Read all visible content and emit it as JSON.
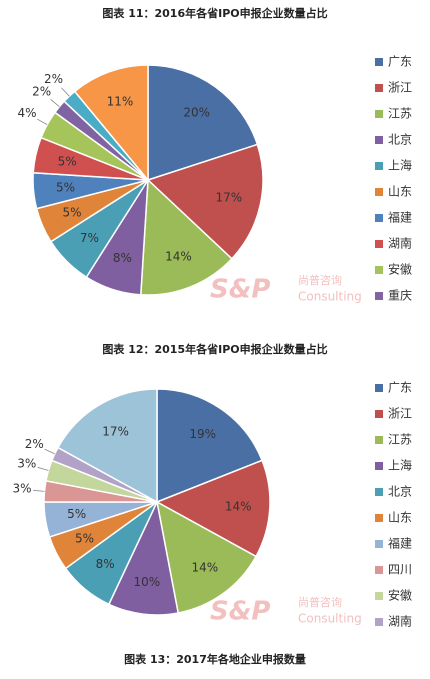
{
  "chart_data": [
    {
      "type": "pie",
      "title": "图表 11：2016年各省IPO申报企业数量占比",
      "categories": [
        "广东",
        "浙江",
        "江苏",
        "北京",
        "上海",
        "山东",
        "福建",
        "湖南",
        "安徽",
        "重庆",
        null,
        null
      ],
      "values": [
        20,
        17,
        14,
        8,
        7,
        5,
        5,
        5,
        4,
        2,
        2,
        11
      ],
      "value_labels": [
        "20%",
        "17%",
        "14%",
        "8%",
        "7%",
        "5%",
        "5%",
        "5%",
        "4%",
        "2%",
        "2%",
        "11%"
      ],
      "colors": [
        "#4a6fa5",
        "#c0504d",
        "#9bbb59",
        "#7f5f9f",
        "#4a9fb5",
        "#e0843a",
        "#4f81bd",
        "#d05050",
        "#a5c45a",
        "#8064a2",
        "#4bacc6",
        "#f79646"
      ],
      "watermark": {
        "logo": "S&P",
        "cn": "尚普咨询",
        "en": "Consulting"
      }
    },
    {
      "type": "pie",
      "title": "图表 12：2015年各省IPO申报企业数量占比",
      "categories": [
        "广东",
        "浙江",
        "江苏",
        "上海",
        "北京",
        "山东",
        "福建",
        "四川",
        "安徽",
        "湖南",
        null
      ],
      "values": [
        19,
        14,
        14,
        10,
        8,
        5,
        5,
        3,
        3,
        2,
        17
      ],
      "value_labels": [
        "19%",
        "14%",
        "14%",
        "10%",
        "8%",
        "5%",
        "5%",
        "3%",
        "3%",
        "2%",
        "17%"
      ],
      "colors": [
        "#4a6fa5",
        "#c0504d",
        "#9bbb59",
        "#7f5f9f",
        "#4a9fb5",
        "#e0843a",
        "#95b3d7",
        "#d99694",
        "#c3d69b",
        "#b3a2c7",
        "#9dc3d8"
      ],
      "watermark": {
        "logo": "S&P",
        "cn": "尚普咨询",
        "en": "Consulting"
      }
    }
  ],
  "next_title": "图表 13：2017年各地企业申报数量"
}
